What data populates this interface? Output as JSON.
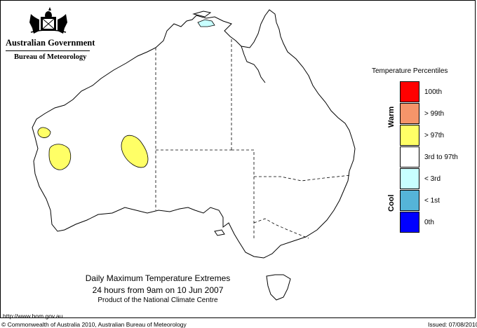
{
  "branding": {
    "government": "Australian Government",
    "bureau": "Bureau of Meteorology"
  },
  "legend": {
    "title": "Temperature Percentiles",
    "warm_label": "Warm",
    "cool_label": "Cool",
    "items": [
      {
        "label": "100th",
        "color": "#ff0000"
      },
      {
        "label": "> 99th",
        "color": "#f5956a"
      },
      {
        "label": "> 97th",
        "color": "#ffff66"
      },
      {
        "label": "3rd to 97th",
        "color": "#ffffff"
      },
      {
        "label": "< 3rd",
        "color": "#c8ffff"
      },
      {
        "label": "< 1st",
        "color": "#55b4d8"
      },
      {
        "label": "0th",
        "color": "#0000ff"
      }
    ]
  },
  "caption": {
    "title": "Daily Maximum Temperature Extremes",
    "subtitle": "24 hours from 9am on 10 Jun 2007",
    "product": "Product of the National Climate Centre"
  },
  "footer": {
    "url": "http://www.bom.gov.au",
    "copyright": "© Commonwealth of Australia 2010, Australian Bureau of Meteorology",
    "issued": "Issued: 07/08/2010"
  },
  "map": {
    "outline_color": "#000000",
    "regions": [
      {
        "name": "far-west-coast-area",
        "category": "> 97th"
      },
      {
        "name": "west-coast-area",
        "category": "> 97th"
      },
      {
        "name": "interior-wa-area",
        "category": "> 97th"
      },
      {
        "name": "top-end-area",
        "category": "< 3rd"
      }
    ]
  }
}
